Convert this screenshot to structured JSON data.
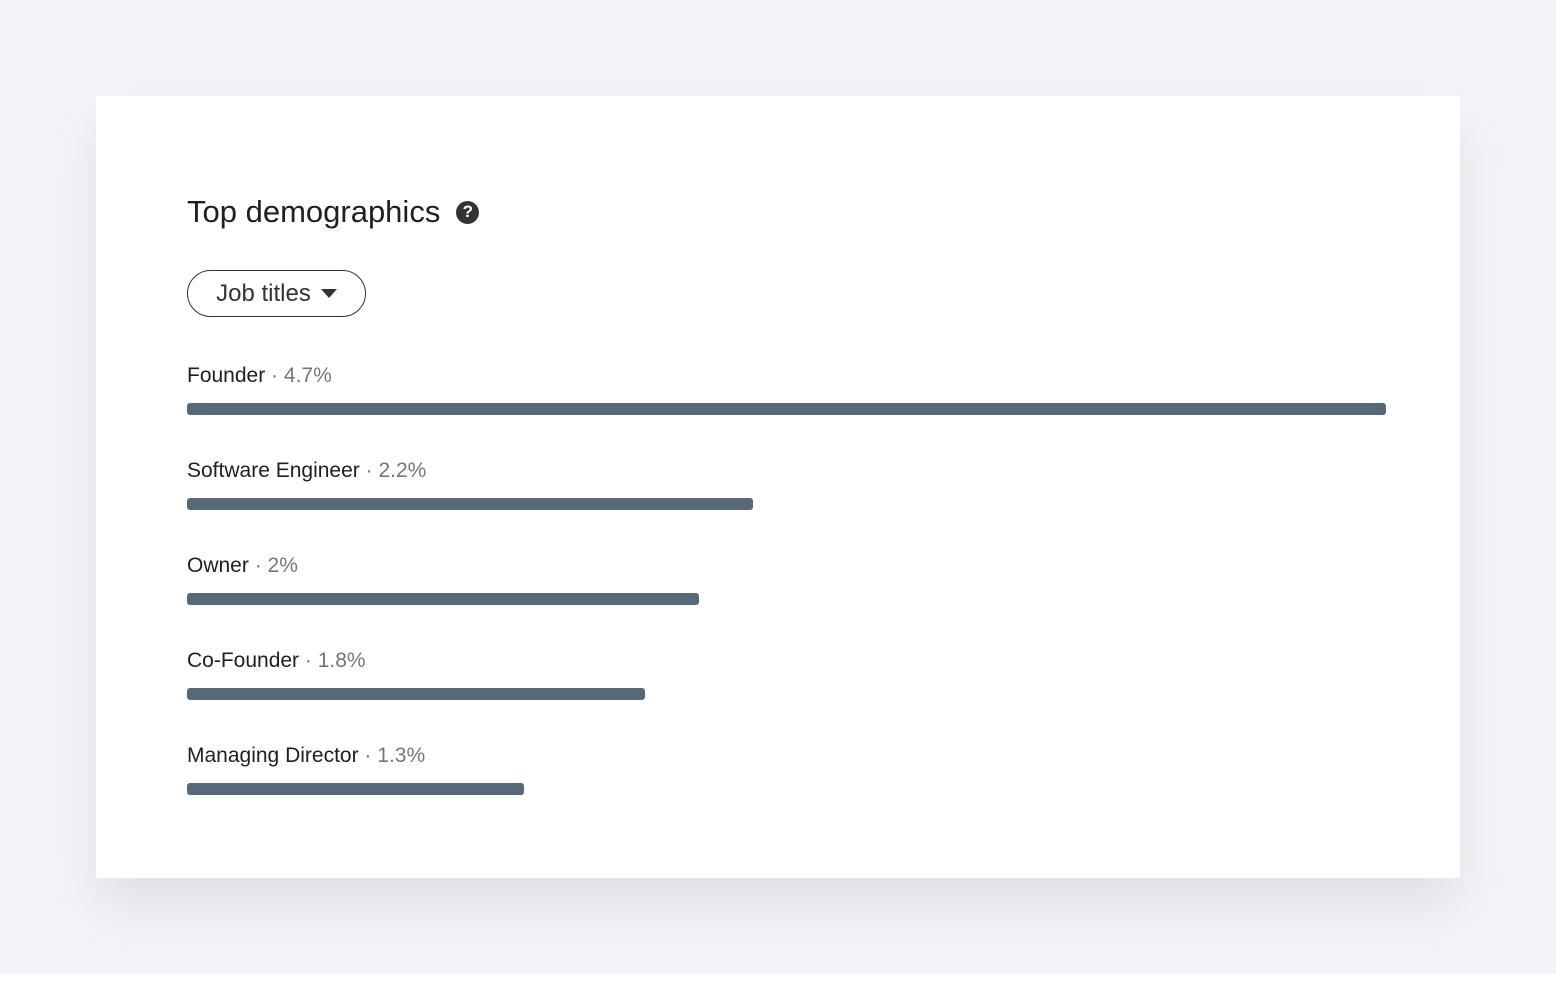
{
  "header": {
    "title": "Top demographics",
    "help_icon": "question-circle-icon"
  },
  "filter": {
    "selected": "Job titles"
  },
  "colors": {
    "bar": "#56687a"
  },
  "chart_data": {
    "type": "bar",
    "orientation": "horizontal",
    "categories": [
      "Founder",
      "Software Engineer",
      "Owner",
      "Co-Founder",
      "Managing Director"
    ],
    "values": [
      4.7,
      2.2,
      2,
      1.8,
      1.3
    ],
    "value_labels": [
      "4.7%",
      "2.2%",
      "2%",
      "1.8%",
      "1.3%"
    ],
    "unit": "%",
    "grid": false
  }
}
